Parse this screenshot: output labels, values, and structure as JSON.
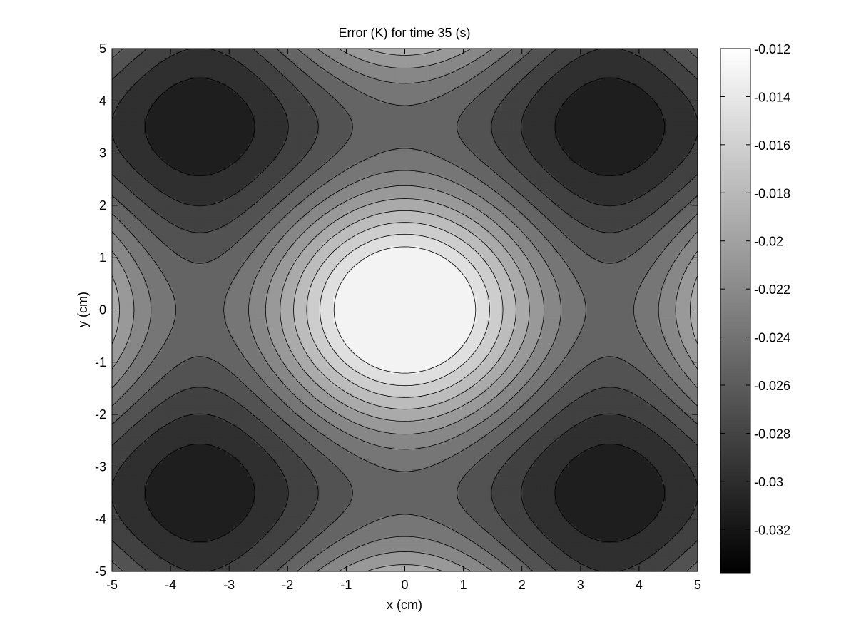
{
  "chart_data": {
    "type": "contour",
    "title": "Error (K) for time 35 (s)",
    "xlabel": "x (cm)",
    "ylabel": "y (cm)",
    "xlim": [
      -5,
      5
    ],
    "ylim": [
      -5,
      5
    ],
    "xticks": [
      -5,
      -4,
      -3,
      -2,
      -1,
      0,
      1,
      2,
      3,
      4,
      5
    ],
    "yticks": [
      -5,
      -4,
      -3,
      -2,
      -1,
      0,
      1,
      2,
      3,
      4,
      5
    ],
    "colormap": "gray",
    "colorbar": {
      "range": [
        -0.0338,
        -0.012
      ],
      "ticks": [
        -0.012,
        -0.014,
        -0.016,
        -0.018,
        -0.02,
        -0.022,
        -0.024,
        -0.026,
        -0.028,
        -0.03,
        -0.032
      ],
      "tick_labels": [
        "-0.012",
        "-0.014",
        "-0.016",
        "-0.018",
        "-0.02",
        "-0.022",
        "-0.024",
        "-0.026",
        "-0.028",
        "-0.03",
        "-0.032"
      ]
    },
    "contour_levels": [
      -0.0335,
      -0.032,
      -0.0305,
      -0.029,
      -0.0275,
      -0.026,
      -0.0245,
      -0.023,
      -0.0215,
      -0.02,
      -0.0185,
      -0.017,
      -0.0155,
      -0.014
    ],
    "features": [
      {
        "kind": "maximum",
        "x": 0,
        "y": 0,
        "value": -0.012
      },
      {
        "kind": "minimum",
        "x": -3.5,
        "y": 3.5,
        "value": -0.0338
      },
      {
        "kind": "minimum",
        "x": 3.5,
        "y": 3.5,
        "value": -0.0338
      },
      {
        "kind": "minimum",
        "x": -3.5,
        "y": -3.5,
        "value": -0.0338
      },
      {
        "kind": "minimum",
        "x": 3.5,
        "y": -3.5,
        "value": -0.0338
      }
    ],
    "grid": false
  }
}
